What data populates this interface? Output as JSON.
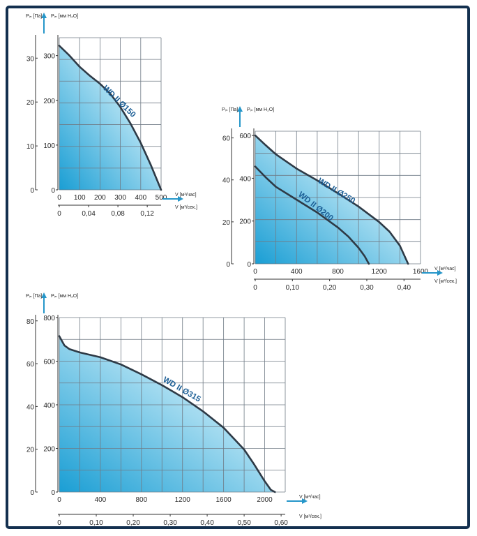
{
  "chart_data": [
    {
      "type": "line",
      "y_label_pa": "Pᵢₙ [Па]",
      "y_label_mm": "Pᵢₙ [мм H₂O]",
      "x_label_flow": "V [м³/час]",
      "x_label_speed": "V [м³/сек.]",
      "xlim": [
        0,
        500
      ],
      "ylim": [
        0,
        340
      ],
      "x_ticks": [
        0,
        100,
        200,
        300,
        400,
        500
      ],
      "y_ticks": [
        0,
        100,
        200,
        300
      ],
      "y2_ticks": [
        {
          "value": 0,
          "label": "0"
        },
        {
          "value": 98.1,
          "label": "10"
        },
        {
          "value": 196.2,
          "label": "20"
        },
        {
          "value": 294.3,
          "label": "30"
        }
      ],
      "x2_ticks": [
        {
          "value": 0,
          "label": "0"
        },
        {
          "value": 144,
          "label": "0,04"
        },
        {
          "value": 288,
          "label": "0,08"
        },
        {
          "value": 432,
          "label": "0,12"
        }
      ],
      "series": [
        {
          "name": "WD II Ø150",
          "x": [
            0,
            50,
            100,
            150,
            200,
            250,
            300,
            350,
            400,
            450,
            500
          ],
          "y": [
            322,
            300,
            275,
            255,
            237,
            215,
            185,
            148,
            105,
            55,
            0
          ]
        }
      ]
    },
    {
      "type": "line",
      "y_label_pa": "Pᵢₙ [Па]",
      "y_label_mm": "Pᵢₙ [мм H₂O]",
      "x_label_flow": "V [м³/час]",
      "x_label_speed": "V [м³/сек.]",
      "xlim": [
        0,
        1600
      ],
      "ylim": [
        0,
        620
      ],
      "x_ticks": [
        0,
        400,
        800,
        1200,
        1600
      ],
      "y_ticks": [
        0,
        200,
        400,
        600
      ],
      "y2_ticks": [
        {
          "value": 0,
          "label": "0"
        },
        {
          "value": 196.2,
          "label": "20"
        },
        {
          "value": 392.4,
          "label": "40"
        },
        {
          "value": 588.6,
          "label": "60"
        }
      ],
      "x2_ticks": [
        {
          "value": 0,
          "label": "0"
        },
        {
          "value": 360,
          "label": "0,10"
        },
        {
          "value": 720,
          "label": "0,20"
        },
        {
          "value": 1080,
          "label": "0,30"
        },
        {
          "value": 1440,
          "label": "0,40"
        }
      ],
      "series": [
        {
          "name": "WD II Ø250",
          "x": [
            0,
            100,
            200,
            400,
            600,
            800,
            1000,
            1200,
            1300,
            1400,
            1480
          ],
          "y": [
            600,
            555,
            512,
            445,
            390,
            330,
            268,
            195,
            150,
            85,
            0
          ]
        },
        {
          "name": "WD II Ø200",
          "x": [
            0,
            100,
            200,
            400,
            600,
            800,
            900,
            1000,
            1060,
            1100
          ],
          "y": [
            455,
            405,
            360,
            300,
            240,
            170,
            128,
            75,
            35,
            0
          ]
        }
      ]
    },
    {
      "type": "line",
      "y_label_pa": "Pᵢₙ [Па]",
      "y_label_mm": "Pᵢₙ [мм H₂O]",
      "x_label_flow": "V [м³/час]",
      "x_label_speed": "V [м³/сек.]",
      "xlim": [
        0,
        2200
      ],
      "ylim": [
        0,
        800
      ],
      "x_ticks": [
        0,
        400,
        800,
        1200,
        1600,
        2000
      ],
      "y_ticks": [
        0,
        200,
        400,
        600,
        800
      ],
      "y2_ticks": [
        {
          "value": 0,
          "label": "0"
        },
        {
          "value": 196.2,
          "label": "20"
        },
        {
          "value": 392.4,
          "label": "40"
        },
        {
          "value": 588.6,
          "label": "60"
        },
        {
          "value": 784.8,
          "label": "80"
        }
      ],
      "x2_ticks": [
        {
          "value": 0,
          "label": "0"
        },
        {
          "value": 360,
          "label": "0,10"
        },
        {
          "value": 720,
          "label": "0,20"
        },
        {
          "value": 1080,
          "label": "0,30"
        },
        {
          "value": 1440,
          "label": "0,40"
        },
        {
          "value": 1800,
          "label": "0,50"
        },
        {
          "value": 2160,
          "label": "0,60"
        }
      ],
      "series": [
        {
          "name": "WD II Ø315",
          "x": [
            0,
            50,
            100,
            200,
            400,
            600,
            800,
            1000,
            1200,
            1400,
            1600,
            1800,
            1900,
            2000,
            2060,
            2100
          ],
          "y": [
            715,
            672,
            655,
            640,
            618,
            585,
            540,
            490,
            435,
            370,
            295,
            195,
            125,
            50,
            10,
            0
          ]
        }
      ]
    }
  ]
}
